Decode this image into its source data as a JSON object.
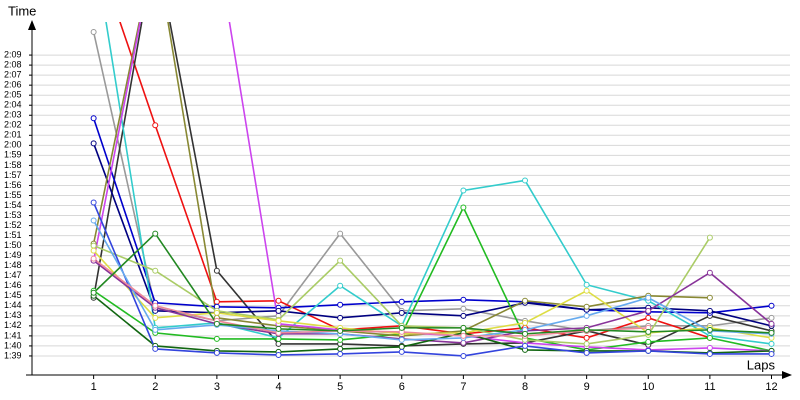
{
  "chart_data": {
    "type": "line",
    "xlabel": "Laps",
    "ylabel": "Time",
    "x": [
      1,
      2,
      3,
      4,
      5,
      6,
      7,
      8,
      9,
      10,
      11,
      12
    ],
    "xlim": [
      0,
      12.3
    ],
    "xticks": [
      1,
      2,
      3,
      4,
      5,
      6,
      7,
      8,
      9,
      10,
      11,
      12
    ],
    "ylim": [
      97.1,
      131.7
    ],
    "yticks": [
      {
        "value": 99,
        "label": "1:39"
      },
      {
        "value": 100,
        "label": "1:40"
      },
      {
        "value": 101,
        "label": "1:41"
      },
      {
        "value": 102,
        "label": "1:42"
      },
      {
        "value": 103,
        "label": "1:43"
      },
      {
        "value": 104,
        "label": "1:44"
      },
      {
        "value": 105,
        "label": "1:45"
      },
      {
        "value": 106,
        "label": "1:46"
      },
      {
        "value": 107,
        "label": "1:47"
      },
      {
        "value": 108,
        "label": "1:48"
      },
      {
        "value": 109,
        "label": "1:49"
      },
      {
        "value": 110,
        "label": "1:50"
      },
      {
        "value": 111,
        "label": "1:51"
      },
      {
        "value": 112,
        "label": "1:52"
      },
      {
        "value": 113,
        "label": "1:53"
      },
      {
        "value": 114,
        "label": "1:54"
      },
      {
        "value": 115,
        "label": "1:55"
      },
      {
        "value": 116,
        "label": "1:56"
      },
      {
        "value": 117,
        "label": "1:57"
      },
      {
        "value": 118,
        "label": "1:58"
      },
      {
        "value": 119,
        "label": "1:59"
      },
      {
        "value": 120,
        "label": "2:00"
      },
      {
        "value": 121,
        "label": "2:01"
      },
      {
        "value": 122,
        "label": "2:02"
      },
      {
        "value": 123,
        "label": "2:03"
      },
      {
        "value": 124,
        "label": "2:04"
      },
      {
        "value": 125,
        "label": "2:05"
      },
      {
        "value": 126,
        "label": "2:06"
      },
      {
        "value": 127,
        "label": "2:07"
      },
      {
        "value": 128,
        "label": "2:08"
      },
      {
        "value": 129,
        "label": "2:09"
      }
    ],
    "grid": true,
    "series": [
      {
        "color": "#999999",
        "values": [
          131.3,
          103.8,
          102.5,
          103,
          111.2,
          103.5,
          103.7,
          102.5,
          101.5,
          102,
          102,
          102.8
        ]
      },
      {
        "color": "#ee1111",
        "values": [
          140,
          122,
          104.4,
          104.5,
          101.6,
          102,
          101.2,
          101.8,
          100.8,
          102.8,
          100.8,
          null
        ]
      },
      {
        "color": "#333333",
        "values": [
          104.8,
          140,
          107.5,
          100.2,
          100.2,
          100,
          100.2,
          100.3,
          101.5,
          100.1,
          103,
          101.5
        ]
      },
      {
        "color": "#0000cc",
        "values": [
          122.7,
          104.3,
          103.9,
          103.8,
          104.1,
          104.4,
          104.6,
          104.4,
          103.6,
          103.4,
          103.3,
          104
        ]
      },
      {
        "color": "#000080",
        "values": [
          120.2,
          103.5,
          103.3,
          103.5,
          102.8,
          103.3,
          103,
          104.3,
          103.6,
          103.8,
          103.5,
          102
        ]
      },
      {
        "color": "#33cccc",
        "values": [
          140,
          101.8,
          102.3,
          100.8,
          106,
          102,
          115.5,
          116.5,
          106.1,
          104.5,
          101,
          100.2
        ]
      },
      {
        "color": "#22bb22",
        "values": [
          105.5,
          101.3,
          100.7,
          100.7,
          100.6,
          101.2,
          113.8,
          100.8,
          99.6,
          100.4,
          100.8,
          99.5
        ]
      },
      {
        "color": "#888833",
        "values": [
          110.2,
          140,
          102.8,
          102,
          101.5,
          101,
          101.5,
          104.5,
          103.9,
          105,
          104.8,
          null
        ]
      },
      {
        "color": "#cc44ee",
        "values": [
          108.5,
          140,
          140,
          102.2,
          101.6,
          101.3,
          101,
          100.3,
          99.9,
          99.6,
          99.8,
          99.5
        ]
      },
      {
        "color": "#aacc66",
        "values": [
          110,
          107.5,
          103.5,
          102.6,
          108.5,
          102,
          101.8,
          100.6,
          100.2,
          101.1,
          110.8,
          null
        ]
      },
      {
        "color": "#dddd44",
        "values": [
          109.5,
          102.8,
          103.3,
          102.5,
          101.8,
          101.2,
          101.3,
          102.3,
          105.5,
          101.3,
          101.8,
          100.8
        ]
      },
      {
        "color": "#883399",
        "values": [
          108.5,
          103.8,
          102.2,
          101.2,
          101.2,
          100.7,
          100.3,
          101.5,
          101.8,
          103.5,
          107.3,
          102.2
        ]
      },
      {
        "color": "#116611",
        "values": [
          105,
          100,
          99.5,
          99.4,
          99.7,
          99.9,
          101.3,
          99.6,
          99.5,
          99.5,
          99.3,
          99.5
        ]
      },
      {
        "color": "#3344dd",
        "values": [
          114.3,
          99.7,
          99.3,
          99.1,
          99.2,
          99.4,
          99,
          100,
          99.3,
          99.5,
          99.2,
          99.2
        ]
      },
      {
        "color": "#66aaee",
        "values": [
          112.5,
          101.6,
          102.1,
          101.5,
          101.2,
          100.6,
          100.8,
          101.6,
          103,
          104.8,
          101.5,
          101.2
        ]
      },
      {
        "color": "#ee8899",
        "values": [
          108.7,
          104,
          102.5,
          101.3,
          101.5,
          101.4,
          101,
          101,
          101.5,
          101.8,
          null,
          null
        ]
      },
      {
        "color": "#228822",
        "values": [
          105.3,
          111.2,
          102.2,
          101.7,
          101.5,
          101.8,
          101.8,
          101.2,
          101.6,
          101.4,
          101.6,
          101.3
        ]
      }
    ]
  }
}
